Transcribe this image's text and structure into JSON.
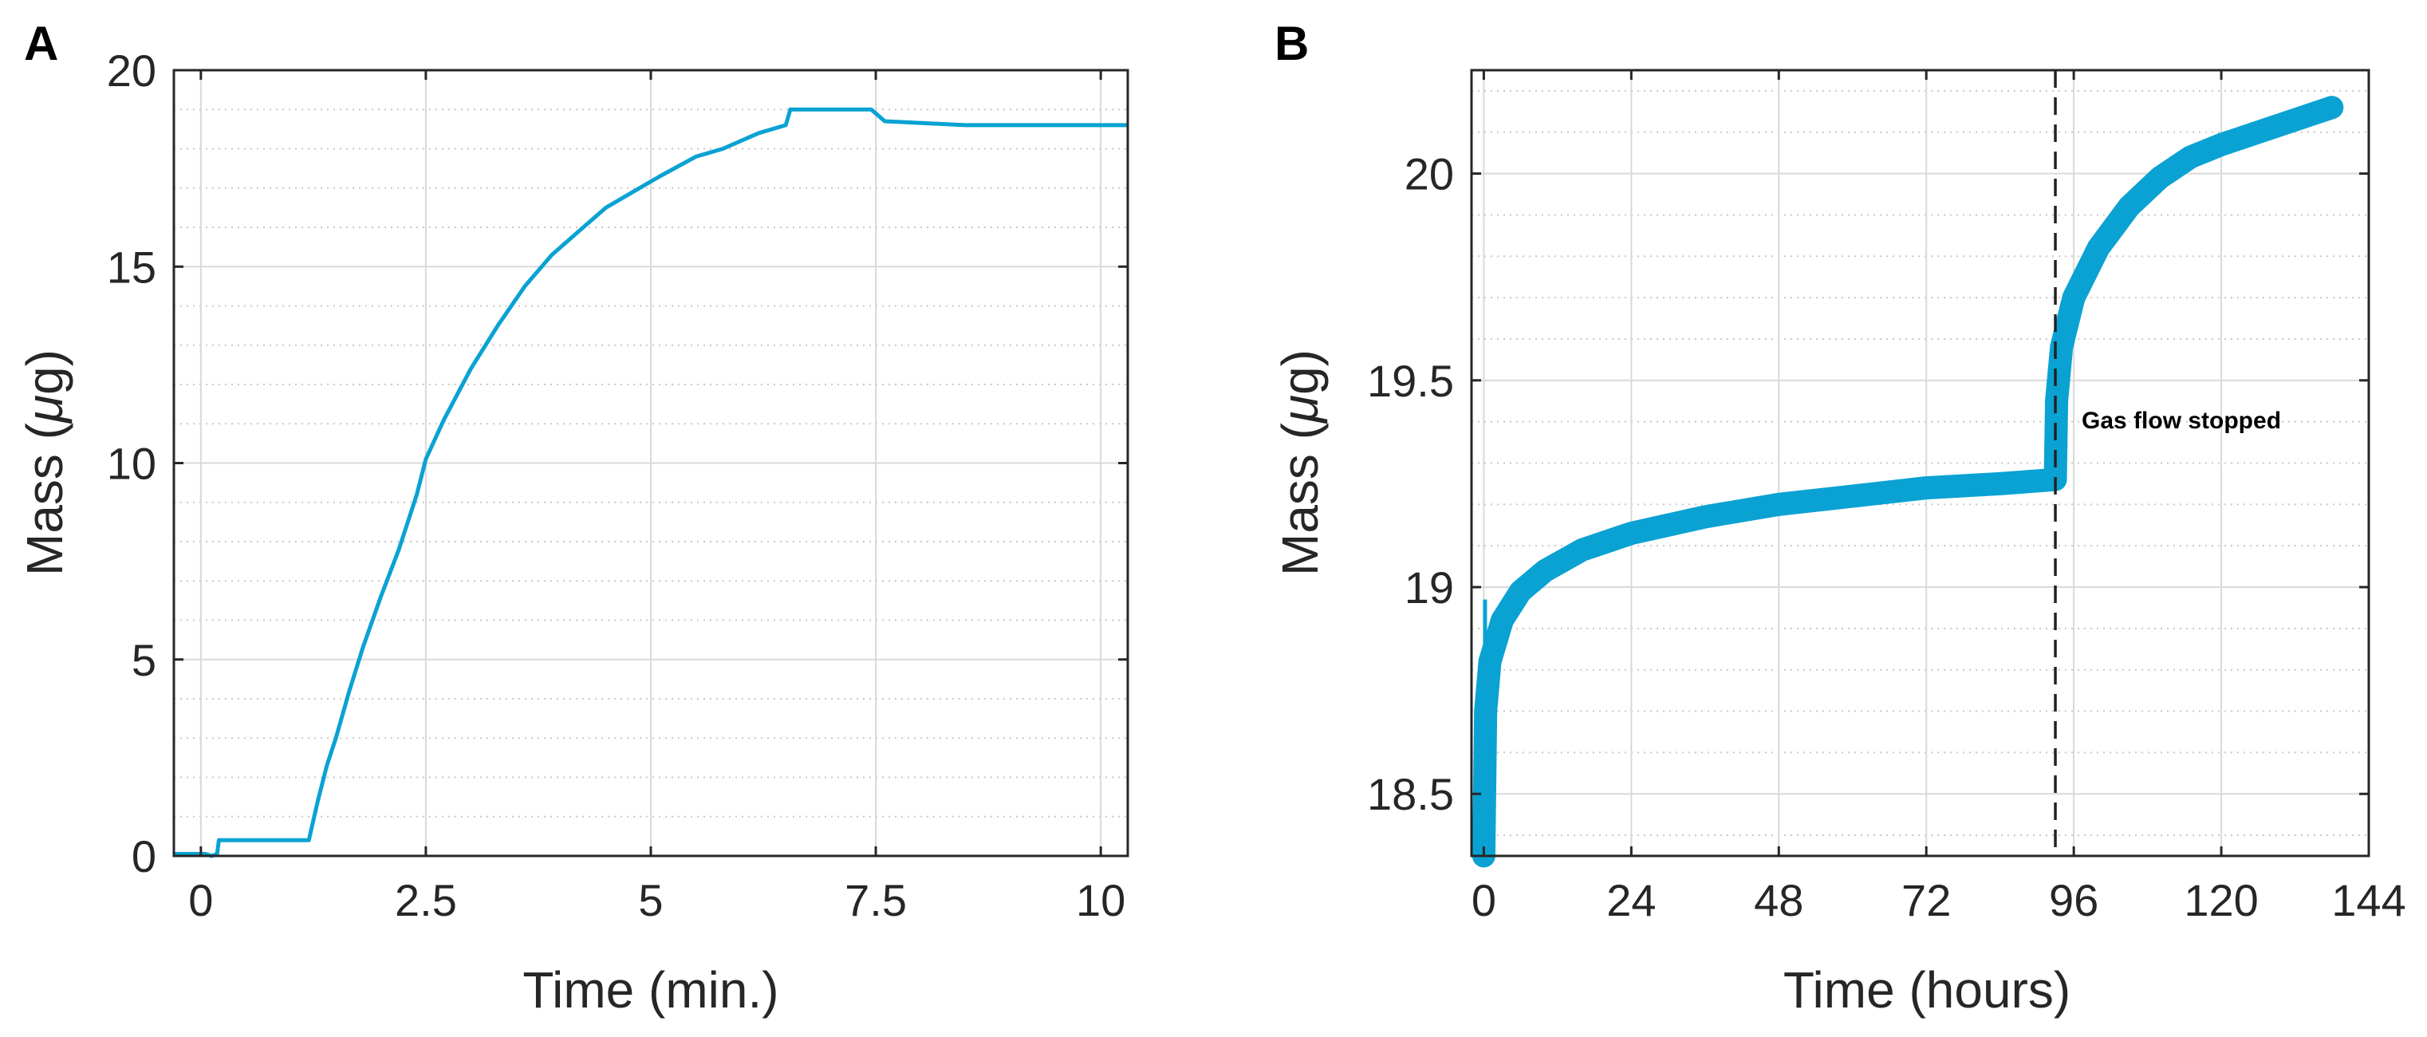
{
  "colors": {
    "series": "#0aa2d3",
    "axis": "#262626",
    "major_grid": "#d9d9d9",
    "minor_grid": "#c8c8c8",
    "marker_line": "#222222"
  },
  "chart_data": [
    {
      "panel": "A",
      "type": "line",
      "xlabel": "Time (min.)",
      "ylabel_text": "Mass (",
      "ylabel_symbol": "μ",
      "ylabel_unit": "g)",
      "xlim": [
        -0.3,
        10.3
      ],
      "ylim": [
        0,
        20
      ],
      "xticks": [
        0,
        2.5,
        5,
        7.5,
        10
      ],
      "xtick_labels": [
        "0",
        "2.5",
        "5",
        "7.5",
        "10"
      ],
      "yticks": [
        0,
        5,
        10,
        15,
        20
      ],
      "ytick_labels": [
        "0",
        "5",
        "10",
        "15",
        "20"
      ],
      "grid": "major and minor",
      "series": [
        {
          "points": [
            [
              -0.3,
              0.05
            ],
            [
              0.05,
              0.05
            ],
            [
              0.12,
              0.0
            ],
            [
              0.18,
              0.05
            ],
            [
              0.2,
              0.4
            ],
            [
              0.5,
              0.4
            ],
            [
              1.2,
              0.4
            ],
            [
              1.3,
              1.4
            ],
            [
              1.4,
              2.3
            ],
            [
              1.5,
              3.0
            ],
            [
              1.65,
              4.2
            ],
            [
              1.8,
              5.3
            ],
            [
              2.0,
              6.6
            ],
            [
              2.2,
              7.8
            ],
            [
              2.4,
              9.2
            ],
            [
              2.5,
              10.1
            ],
            [
              2.7,
              11.1
            ],
            [
              3.0,
              12.4
            ],
            [
              3.3,
              13.5
            ],
            [
              3.6,
              14.5
            ],
            [
              3.9,
              15.3
            ],
            [
              4.2,
              15.9
            ],
            [
              4.5,
              16.5
            ],
            [
              4.8,
              16.9
            ],
            [
              5.1,
              17.3
            ],
            [
              5.5,
              17.8
            ],
            [
              5.8,
              18.0
            ],
            [
              6.2,
              18.4
            ],
            [
              6.5,
              18.6
            ],
            [
              6.55,
              19.0
            ],
            [
              7.0,
              19.0
            ],
            [
              7.45,
              19.0
            ],
            [
              7.6,
              18.7
            ],
            [
              8.5,
              18.6
            ],
            [
              10.3,
              18.6
            ]
          ]
        }
      ]
    },
    {
      "panel": "B",
      "type": "line",
      "xlabel": "Time (hours)",
      "ylabel_text": "Mass (",
      "ylabel_symbol": "μ",
      "ylabel_unit": "g)",
      "xlim": [
        -2,
        144
      ],
      "ylim": [
        18.35,
        20.25
      ],
      "xticks": [
        0,
        24,
        48,
        72,
        96,
        120,
        144
      ],
      "xtick_labels": [
        "0",
        "24",
        "48",
        "72",
        "96",
        "120",
        "144"
      ],
      "yticks": [
        18.5,
        19,
        19.5,
        20
      ],
      "ytick_labels": [
        "18.5",
        "19",
        "19.5",
        "20"
      ],
      "grid": "major and minor",
      "annotation": "Gas flow stopped",
      "annotation_x": 93,
      "noise_band": 0.035,
      "series": [
        {
          "points": [
            [
              0,
              18.35
            ],
            [
              0.3,
              18.7
            ],
            [
              1,
              18.82
            ],
            [
              3,
              18.92
            ],
            [
              6,
              18.99
            ],
            [
              10,
              19.04
            ],
            [
              16,
              19.09
            ],
            [
              24,
              19.13
            ],
            [
              36,
              19.17
            ],
            [
              48,
              19.2
            ],
            [
              60,
              19.22
            ],
            [
              72,
              19.24
            ],
            [
              84,
              19.25
            ],
            [
              93,
              19.26
            ],
            [
              93.2,
              19.45
            ],
            [
              94,
              19.58
            ],
            [
              96,
              19.7
            ],
            [
              100,
              19.82
            ],
            [
              105,
              19.92
            ],
            [
              110,
              19.99
            ],
            [
              115,
              20.04
            ],
            [
              120,
              20.07
            ],
            [
              126,
              20.1
            ],
            [
              132,
              20.13
            ],
            [
              138,
              20.16
            ]
          ]
        }
      ]
    }
  ]
}
